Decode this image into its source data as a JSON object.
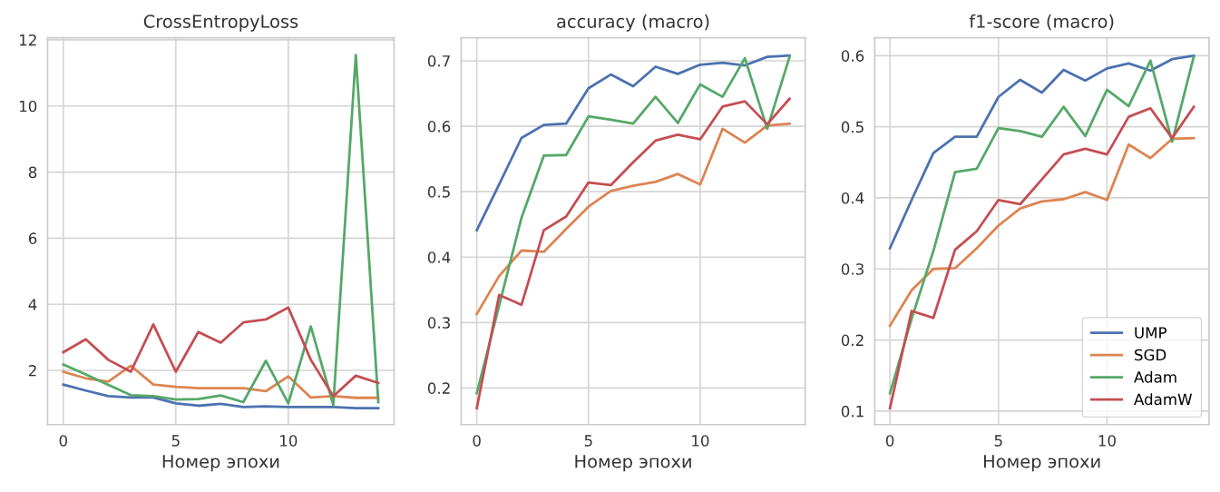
{
  "chart_data": [
    {
      "type": "line",
      "title": "CrossEntropyLoss",
      "xlabel": "Номер эпохи",
      "x": [
        0,
        1,
        2,
        3,
        4,
        5,
        6,
        7,
        8,
        9,
        10,
        11,
        12,
        13,
        14
      ],
      "xlim": [
        -0.7,
        14.7
      ],
      "ylim": [
        0.36,
        12.06
      ],
      "xticks": [
        0,
        5,
        10
      ],
      "yticks": [
        2,
        4,
        6,
        8,
        10,
        12
      ],
      "grid": true,
      "series": [
        {
          "color": "#4c72b0",
          "values": [
            1.57,
            1.39,
            1.22,
            1.18,
            1.18,
            1.0,
            0.93,
            0.99,
            0.89,
            0.91,
            0.89,
            0.89,
            0.89,
            0.86,
            0.86
          ]
        },
        {
          "color": "#dd8452",
          "values": [
            1.96,
            1.76,
            1.66,
            2.14,
            1.57,
            1.5,
            1.46,
            1.46,
            1.46,
            1.37,
            1.82,
            1.18,
            1.22,
            1.17,
            1.17
          ]
        },
        {
          "color": "#55a868",
          "values": [
            2.18,
            1.88,
            1.56,
            1.25,
            1.22,
            1.12,
            1.13,
            1.24,
            1.04,
            2.29,
            1.0,
            3.33,
            0.95,
            11.54,
            1.04
          ]
        },
        {
          "color": "#c44e52",
          "values": [
            2.55,
            2.94,
            2.32,
            1.96,
            3.39,
            1.96,
            3.16,
            2.84,
            3.45,
            3.54,
            3.9,
            2.32,
            1.22,
            1.84,
            1.62
          ]
        }
      ]
    },
    {
      "type": "line",
      "title": "accuracy (macro)",
      "xlabel": "Номер эпохи",
      "x": [
        0,
        1,
        2,
        3,
        4,
        5,
        6,
        7,
        8,
        9,
        10,
        11,
        12,
        13,
        14
      ],
      "xlim": [
        -0.7,
        14.7
      ],
      "ylim": [
        0.144,
        0.735
      ],
      "xticks": [
        0,
        5,
        10
      ],
      "yticks": [
        0.2,
        0.3,
        0.4,
        0.5,
        0.6,
        0.7
      ],
      "grid": true,
      "series": [
        {
          "color": "#4c72b0",
          "values": [
            0.441,
            0.511,
            0.582,
            0.602,
            0.604,
            0.658,
            0.679,
            0.661,
            0.691,
            0.68,
            0.694,
            0.697,
            0.693,
            0.706,
            0.708
          ]
        },
        {
          "color": "#dd8452",
          "values": [
            0.313,
            0.371,
            0.41,
            0.408,
            0.443,
            0.477,
            0.501,
            0.509,
            0.515,
            0.527,
            0.511,
            0.596,
            0.575,
            0.601,
            0.604
          ]
        },
        {
          "color": "#55a868",
          "values": [
            0.192,
            0.326,
            0.46,
            0.555,
            0.556,
            0.615,
            0.61,
            0.604,
            0.645,
            0.605,
            0.664,
            0.645,
            0.704,
            0.596,
            0.706
          ]
        },
        {
          "color": "#c44e52",
          "values": [
            0.169,
            0.342,
            0.327,
            0.441,
            0.462,
            0.514,
            0.51,
            0.545,
            0.578,
            0.587,
            0.58,
            0.63,
            0.638,
            0.603,
            0.642
          ]
        }
      ]
    },
    {
      "type": "line",
      "title": "f1-score (macro)",
      "xlabel": "Номер эпохи",
      "x": [
        0,
        1,
        2,
        3,
        4,
        5,
        6,
        7,
        8,
        9,
        10,
        11,
        12,
        13,
        14
      ],
      "xlim": [
        -0.7,
        14.7
      ],
      "ylim": [
        0.081,
        0.625
      ],
      "xticks": [
        0,
        5,
        10
      ],
      "yticks": [
        0.1,
        0.2,
        0.3,
        0.4,
        0.5,
        0.6
      ],
      "grid": true,
      "legend": "bottom right",
      "series": [
        {
          "name": "UMP",
          "color": "#4c72b0",
          "values": [
            0.329,
            0.397,
            0.463,
            0.486,
            0.486,
            0.542,
            0.566,
            0.548,
            0.58,
            0.565,
            0.582,
            0.589,
            0.579,
            0.595,
            0.6
          ]
        },
        {
          "name": "SGD",
          "color": "#dd8452",
          "values": [
            0.22,
            0.27,
            0.3,
            0.301,
            0.329,
            0.361,
            0.385,
            0.395,
            0.398,
            0.408,
            0.397,
            0.475,
            0.456,
            0.483,
            0.484
          ]
        },
        {
          "name": "Adam",
          "color": "#55a868",
          "values": [
            0.125,
            0.23,
            0.325,
            0.436,
            0.441,
            0.498,
            0.494,
            0.486,
            0.528,
            0.487,
            0.552,
            0.529,
            0.593,
            0.479,
            0.599
          ]
        },
        {
          "name": "AdamW",
          "color": "#c44e52",
          "values": [
            0.104,
            0.241,
            0.231,
            0.327,
            0.353,
            0.397,
            0.391,
            0.426,
            0.461,
            0.469,
            0.461,
            0.514,
            0.526,
            0.484,
            0.528
          ]
        }
      ]
    }
  ]
}
